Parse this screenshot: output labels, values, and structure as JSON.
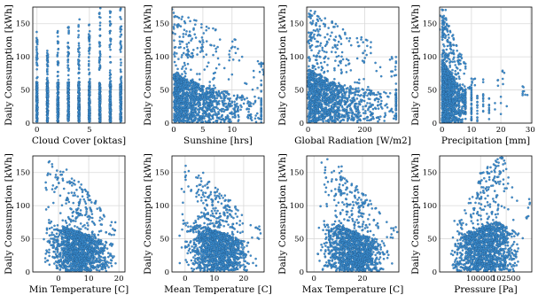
{
  "figure": {
    "layout": "2x4 grid of scatter plots",
    "point_color": "#3b8ed1",
    "point_edge_color": "#1f4f7a",
    "background": "#ffffff",
    "grid": true
  },
  "chart_data": [
    {
      "type": "scatter",
      "xlabel": "Cloud Cover [oktas]",
      "ylabel": "Daily Consumption [kWh]",
      "xlim": [
        -0.4,
        8.4
      ],
      "ylim": [
        0,
        175
      ],
      "xticks": [
        0,
        5
      ],
      "yticks": [
        0,
        50,
        100,
        150
      ],
      "x_discrete": [
        0,
        1,
        2,
        3,
        4,
        5,
        6,
        7,
        8
      ],
      "max_y_by_x": [
        138,
        110,
        140,
        145,
        158,
        152,
        175,
        170,
        175
      ],
      "note_shape": "vertical stripes at integer cloud cover; dense mass below ~60 kWh"
    },
    {
      "type": "scatter",
      "xlabel": "Sunshine [hrs]",
      "ylabel": "Daily Consumption [kWh]",
      "xlim": [
        -0.3,
        15.5
      ],
      "ylim": [
        0,
        175
      ],
      "xticks": [
        0,
        5,
        10
      ],
      "yticks": [
        0,
        50,
        100,
        150
      ],
      "dense_band_upper": [
        [
          0,
          75
        ],
        [
          5,
          55
        ],
        [
          10,
          45
        ],
        [
          15,
          40
        ]
      ],
      "outlier_max": [
        [
          0,
          172
        ],
        [
          5,
          150
        ],
        [
          10,
          130
        ],
        [
          15,
          100
        ]
      ]
    },
    {
      "type": "scatter",
      "xlabel": "Global Radiation [W/m2]",
      "ylabel": "Daily Consumption [kWh]",
      "xlim": [
        -5,
        320
      ],
      "ylim": [
        0,
        175
      ],
      "xticks": [
        0,
        200
      ],
      "yticks": [
        0,
        50,
        100,
        150
      ],
      "dense_band_upper": [
        [
          0,
          80
        ],
        [
          100,
          60
        ],
        [
          200,
          50
        ],
        [
          300,
          45
        ]
      ],
      "outlier_max": [
        [
          20,
          172
        ],
        [
          100,
          150
        ],
        [
          200,
          130
        ],
        [
          300,
          100
        ]
      ]
    },
    {
      "type": "scatter",
      "xlabel": "Precipitation [mm]",
      "ylabel": "Daily Consumption [kWh]",
      "xlim": [
        -0.8,
        30.5
      ],
      "ylim": [
        0,
        175
      ],
      "xticks": [
        0,
        10,
        20,
        30
      ],
      "yticks": [
        0,
        50,
        100,
        150
      ],
      "dense_band_upper": [
        [
          0,
          95
        ],
        [
          5,
          60
        ],
        [
          10,
          45
        ],
        [
          20,
          35
        ],
        [
          30,
          30
        ]
      ],
      "outlier_max": [
        [
          0,
          175
        ],
        [
          5,
          120
        ],
        [
          10,
          70
        ],
        [
          20,
          80
        ],
        [
          28,
          60
        ]
      ]
    },
    {
      "type": "scatter",
      "xlabel": "Min Temperature [C]",
      "ylabel": "Daily Consumption [kWh]",
      "xlim": [
        -8.5,
        22
      ],
      "ylim": [
        0,
        175
      ],
      "xticks": [
        0,
        10,
        20
      ],
      "yticks": [
        0,
        50,
        100,
        150
      ],
      "dense_band_upper": [
        [
          -5,
          80
        ],
        [
          0,
          70
        ],
        [
          10,
          55
        ],
        [
          20,
          40
        ]
      ],
      "outlier_max": [
        [
          -3,
          170
        ],
        [
          0,
          170
        ],
        [
          10,
          120
        ],
        [
          18,
          80
        ]
      ]
    },
    {
      "type": "scatter",
      "xlabel": "Mean Temperature [C]",
      "ylabel": "Daily Consumption [kWh]",
      "xlim": [
        -4.5,
        27
      ],
      "ylim": [
        0,
        175
      ],
      "xticks": [
        0,
        10,
        20
      ],
      "yticks": [
        0,
        50,
        100,
        150
      ],
      "dense_band_upper": [
        [
          -2,
          80
        ],
        [
          5,
          70
        ],
        [
          15,
          55
        ],
        [
          25,
          40
        ]
      ],
      "outlier_max": [
        [
          0,
          170
        ],
        [
          5,
          150
        ],
        [
          15,
          110
        ],
        [
          25,
          70
        ]
      ]
    },
    {
      "type": "scatter",
      "xlabel": "Max Temperature [C]",
      "ylabel": "Daily Consumption [kWh]",
      "xlim": [
        -3,
        35
      ],
      "ylim": [
        0,
        175
      ],
      "xticks": [
        0,
        20
      ],
      "yticks": [
        0,
        50,
        100,
        150
      ],
      "dense_band_upper": [
        [
          0,
          80
        ],
        [
          10,
          70
        ],
        [
          20,
          55
        ],
        [
          33,
          40
        ]
      ],
      "outlier_max": [
        [
          5,
          170
        ],
        [
          10,
          160
        ],
        [
          20,
          120
        ],
        [
          33,
          70
        ]
      ]
    },
    {
      "type": "scatter",
      "xlabel": "Pressure [Pa]",
      "ylabel": "Daily Consumption [kWh]",
      "xlim": [
        96000,
        105000
      ],
      "ylim": [
        0,
        175
      ],
      "xticks": [
        100000,
        102500
      ],
      "yticks": [
        0,
        50,
        100,
        150
      ],
      "dense_band_upper": [
        [
          97000,
          40
        ],
        [
          99000,
          60
        ],
        [
          101500,
          75
        ],
        [
          104000,
          55
        ]
      ],
      "outlier_max": [
        [
          98000,
          80
        ],
        [
          100000,
          150
        ],
        [
          102000,
          175
        ],
        [
          104500,
          110
        ]
      ]
    }
  ]
}
